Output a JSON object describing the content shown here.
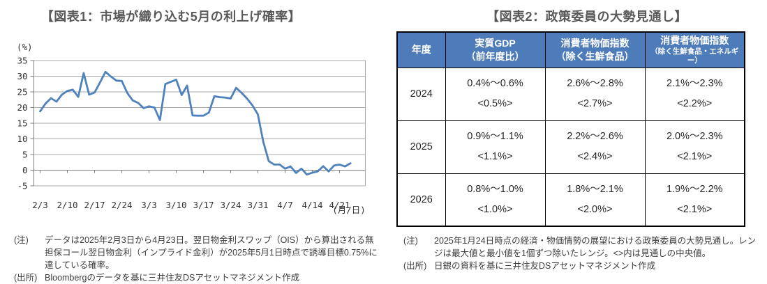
{
  "figure1": {
    "title": "【図表1：市場が織り込む5月の利上げ確率】",
    "note_label": "(注)",
    "note_text": "データは2025年2月3日から4月23日。翌日物金利スワップ（OIS）から算出される無担保コール翌日物金利（インプライド金利）が2025年5月1日時点で誘導目標0.75%に達している確率。",
    "source_label": "(出所)",
    "source_text": "Bloombergのデータを基に三井住友DSアセットマネジメント作成"
  },
  "figure2": {
    "title": "【図表2：政策委員の大勢見通し】",
    "table": {
      "columns": [
        [
          "年度"
        ],
        [
          "実質GDP",
          "（前年度比）"
        ],
        [
          "消費者物価指数",
          "（除く生鮮食品）"
        ],
        [
          "消費者物価指数",
          "（除く生鮮食品・エネルギー）"
        ]
      ],
      "rows": [
        {
          "year": "2024",
          "cells": [
            [
              "0.4%～0.6%",
              "<0.5%>"
            ],
            [
              "2.6%～2.8%",
              "<2.7%>"
            ],
            [
              "2.1%～2.3%",
              "<2.2%>"
            ]
          ]
        },
        {
          "year": "2025",
          "cells": [
            [
              "0.9%～1.1%",
              "<1.1%>"
            ],
            [
              "2.2%～2.6%",
              "<2.4%>"
            ],
            [
              "2.0%～2.3%",
              "<2.1%>"
            ]
          ]
        },
        {
          "year": "2026",
          "cells": [
            [
              "0.8%～1.0%",
              "<1.0%>"
            ],
            [
              "1.8%～2.1%",
              "<2.0%>"
            ],
            [
              "1.9%～2.2%",
              "<2.1%>"
            ]
          ]
        }
      ],
      "header_bg": "#4e7cba"
    },
    "note_label": "(注)",
    "note_text": "2025年1月24日時点の経済・物価情勢の展望における政策委員の大勢見通し。レンジは最大値と最小値を1個ずつ除いたレンジ。<>内は見通しの中央値。",
    "source_label": "(出所)",
    "source_text": "日銀の資料を基に三井住友DSアセットマネジメント作成"
  },
  "chart_data": {
    "type": "line",
    "title": "【図表1：市場が織り込む5月の利上げ確率】",
    "unit_label": "(%)",
    "x_unit_label": "(月/日)",
    "ylabel": "",
    "xlabel": "",
    "ylim": [
      -5,
      35
    ],
    "yticks": [
      35,
      30,
      25,
      20,
      15,
      10,
      5,
      0,
      -5
    ],
    "grid": true,
    "legend": "none",
    "line_color": "#4f81bd",
    "xtick_every": 5,
    "xtick_labels": [
      "2/3",
      "2/10",
      "2/17",
      "2/24",
      "3/3",
      "3/10",
      "3/17",
      "3/24",
      "3/31",
      "4/7",
      "4/14",
      "4/21"
    ],
    "x": [
      "2/3",
      "2/4",
      "2/5",
      "2/6",
      "2/7",
      "2/10",
      "2/11",
      "2/12",
      "2/13",
      "2/14",
      "2/17",
      "2/18",
      "2/19",
      "2/20",
      "2/21",
      "2/24",
      "2/25",
      "2/26",
      "2/27",
      "2/28",
      "3/3",
      "3/4",
      "3/5",
      "3/6",
      "3/7",
      "3/10",
      "3/11",
      "3/12",
      "3/13",
      "3/14",
      "3/17",
      "3/18",
      "3/19",
      "3/20",
      "3/21",
      "3/24",
      "3/25",
      "3/26",
      "3/27",
      "3/28",
      "3/31",
      "4/1",
      "4/2",
      "4/3",
      "4/4",
      "4/7",
      "4/8",
      "4/9",
      "4/10",
      "4/11",
      "4/14",
      "4/15",
      "4/16",
      "4/17",
      "4/18",
      "4/21",
      "4/22",
      "4/23"
    ],
    "values": [
      18.8,
      21.3,
      23.0,
      21.9,
      24.1,
      25.3,
      25.7,
      23.4,
      31.0,
      24.1,
      24.8,
      28.0,
      31.4,
      29.9,
      28.6,
      28.5,
      24.7,
      22.3,
      21.5,
      19.8,
      20.4,
      20.0,
      16.0,
      27.5,
      28.2,
      28.9,
      24.0,
      27.0,
      17.5,
      17.4,
      17.4,
      18.4,
      23.6,
      23.3,
      23.2,
      22.9,
      26.3,
      24.7,
      22.9,
      20.7,
      17.8,
      9.0,
      2.9,
      1.8,
      1.8,
      0.5,
      1.2,
      -0.9,
      0.5,
      -1.4,
      -0.8,
      -0.4,
      1.3,
      -0.4,
      1.5,
      1.8,
      1.2,
      2.2
    ]
  }
}
